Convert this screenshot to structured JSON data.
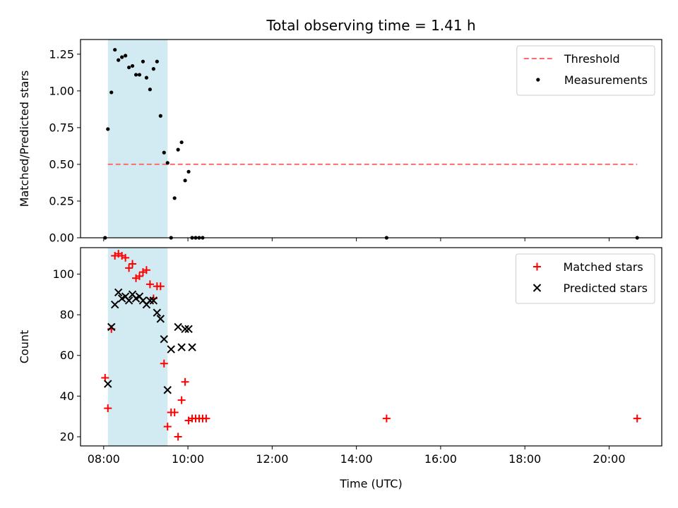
{
  "chart_data": {
    "title": "Total observing time = 1.41 h",
    "xlabel": "Time (UTC)",
    "xlim": [
      "07:27",
      "21:15"
    ],
    "xticks": [
      "08:00",
      "10:00",
      "12:00",
      "14:00",
      "16:00",
      "18:00",
      "20:00"
    ],
    "shaded_region": {
      "x": [
        "08:06",
        "09:31"
      ],
      "color": "#add8e6"
    },
    "panels": [
      {
        "type": "scatter",
        "ylabel": "Matched/Predicted stars",
        "ylim": [
          0,
          1.35
        ],
        "yticks": [
          "0.00",
          "0.25",
          "0.50",
          "0.75",
          "1.00",
          "1.25"
        ],
        "legend": "top-right",
        "threshold": {
          "name": "Threshold",
          "y": 0.5,
          "x": [
            "08:06",
            "20:40"
          ],
          "color": "#ff6b6b"
        },
        "series": [
          {
            "name": "Measurements",
            "color": "#000000",
            "marker": "dot",
            "points": [
              [
                "08:02",
                0.0
              ],
              [
                "08:06",
                0.74
              ],
              [
                "08:11",
                0.99
              ],
              [
                "08:16",
                1.28
              ],
              [
                "08:21",
                1.21
              ],
              [
                "08:26",
                1.23
              ],
              [
                "08:31",
                1.24
              ],
              [
                "08:36",
                1.16
              ],
              [
                "08:41",
                1.17
              ],
              [
                "08:46",
                1.11
              ],
              [
                "08:51",
                1.11
              ],
              [
                "08:56",
                1.2
              ],
              [
                "09:01",
                1.09
              ],
              [
                "09:06",
                1.01
              ],
              [
                "09:11",
                1.15
              ],
              [
                "09:16",
                1.2
              ],
              [
                "09:21",
                0.83
              ],
              [
                "09:26",
                0.58
              ],
              [
                "09:31",
                0.51
              ],
              [
                "09:36",
                0.0
              ],
              [
                "09:41",
                0.27
              ],
              [
                "09:46",
                0.6
              ],
              [
                "09:51",
                0.65
              ],
              [
                "09:56",
                0.39
              ],
              [
                "10:01",
                0.45
              ],
              [
                "10:06",
                0.0
              ],
              [
                "10:11",
                0.0
              ],
              [
                "10:16",
                0.0
              ],
              [
                "10:21",
                0.0
              ],
              [
                "14:43",
                0.0
              ],
              [
                "20:40",
                0.0
              ]
            ]
          }
        ]
      },
      {
        "type": "scatter",
        "ylabel": "Count",
        "ylim": [
          15.5,
          113
        ],
        "yticks": [
          "20",
          "40",
          "60",
          "80",
          "100"
        ],
        "legend": "top-right",
        "series": [
          {
            "name": "Matched stars",
            "color": "#ff0000",
            "marker": "plus",
            "points": [
              [
                "08:02",
                49
              ],
              [
                "08:06",
                34
              ],
              [
                "08:11",
                73
              ],
              [
                "08:16",
                109
              ],
              [
                "08:21",
                110
              ],
              [
                "08:26",
                109
              ],
              [
                "08:31",
                108
              ],
              [
                "08:36",
                103
              ],
              [
                "08:41",
                105
              ],
              [
                "08:46",
                98
              ],
              [
                "08:51",
                99
              ],
              [
                "08:56",
                101
              ],
              [
                "09:01",
                102
              ],
              [
                "09:06",
                95
              ],
              [
                "09:11",
                88
              ],
              [
                "09:16",
                94
              ],
              [
                "09:21",
                94
              ],
              [
                "09:26",
                56
              ],
              [
                "09:31",
                25
              ],
              [
                "09:36",
                32
              ],
              [
                "09:41",
                32
              ],
              [
                "09:46",
                20
              ],
              [
                "09:51",
                38
              ],
              [
                "09:56",
                47
              ],
              [
                "10:01",
                28
              ],
              [
                "10:06",
                29
              ],
              [
                "10:11",
                29
              ],
              [
                "10:16",
                29
              ],
              [
                "10:21",
                29
              ],
              [
                "10:26",
                29
              ],
              [
                "14:43",
                29
              ],
              [
                "20:40",
                29
              ]
            ]
          },
          {
            "name": "Predicted stars",
            "color": "#000000",
            "marker": "cross",
            "points": [
              [
                "08:06",
                46
              ],
              [
                "08:11",
                74
              ],
              [
                "08:16",
                85
              ],
              [
                "08:21",
                91
              ],
              [
                "08:26",
                88
              ],
              [
                "08:31",
                89
              ],
              [
                "08:36",
                87
              ],
              [
                "08:41",
                90
              ],
              [
                "08:46",
                88
              ],
              [
                "08:51",
                89
              ],
              [
                "08:56",
                87
              ],
              [
                "09:01",
                85
              ],
              [
                "09:06",
                87
              ],
              [
                "09:11",
                87
              ],
              [
                "09:16",
                81
              ],
              [
                "09:21",
                78
              ],
              [
                "09:26",
                68
              ],
              [
                "09:31",
                43
              ],
              [
                "09:36",
                63
              ],
              [
                "09:46",
                74
              ],
              [
                "09:51",
                64
              ],
              [
                "09:56",
                73
              ],
              [
                "10:01",
                73
              ],
              [
                "10:06",
                64
              ]
            ]
          }
        ]
      }
    ]
  }
}
